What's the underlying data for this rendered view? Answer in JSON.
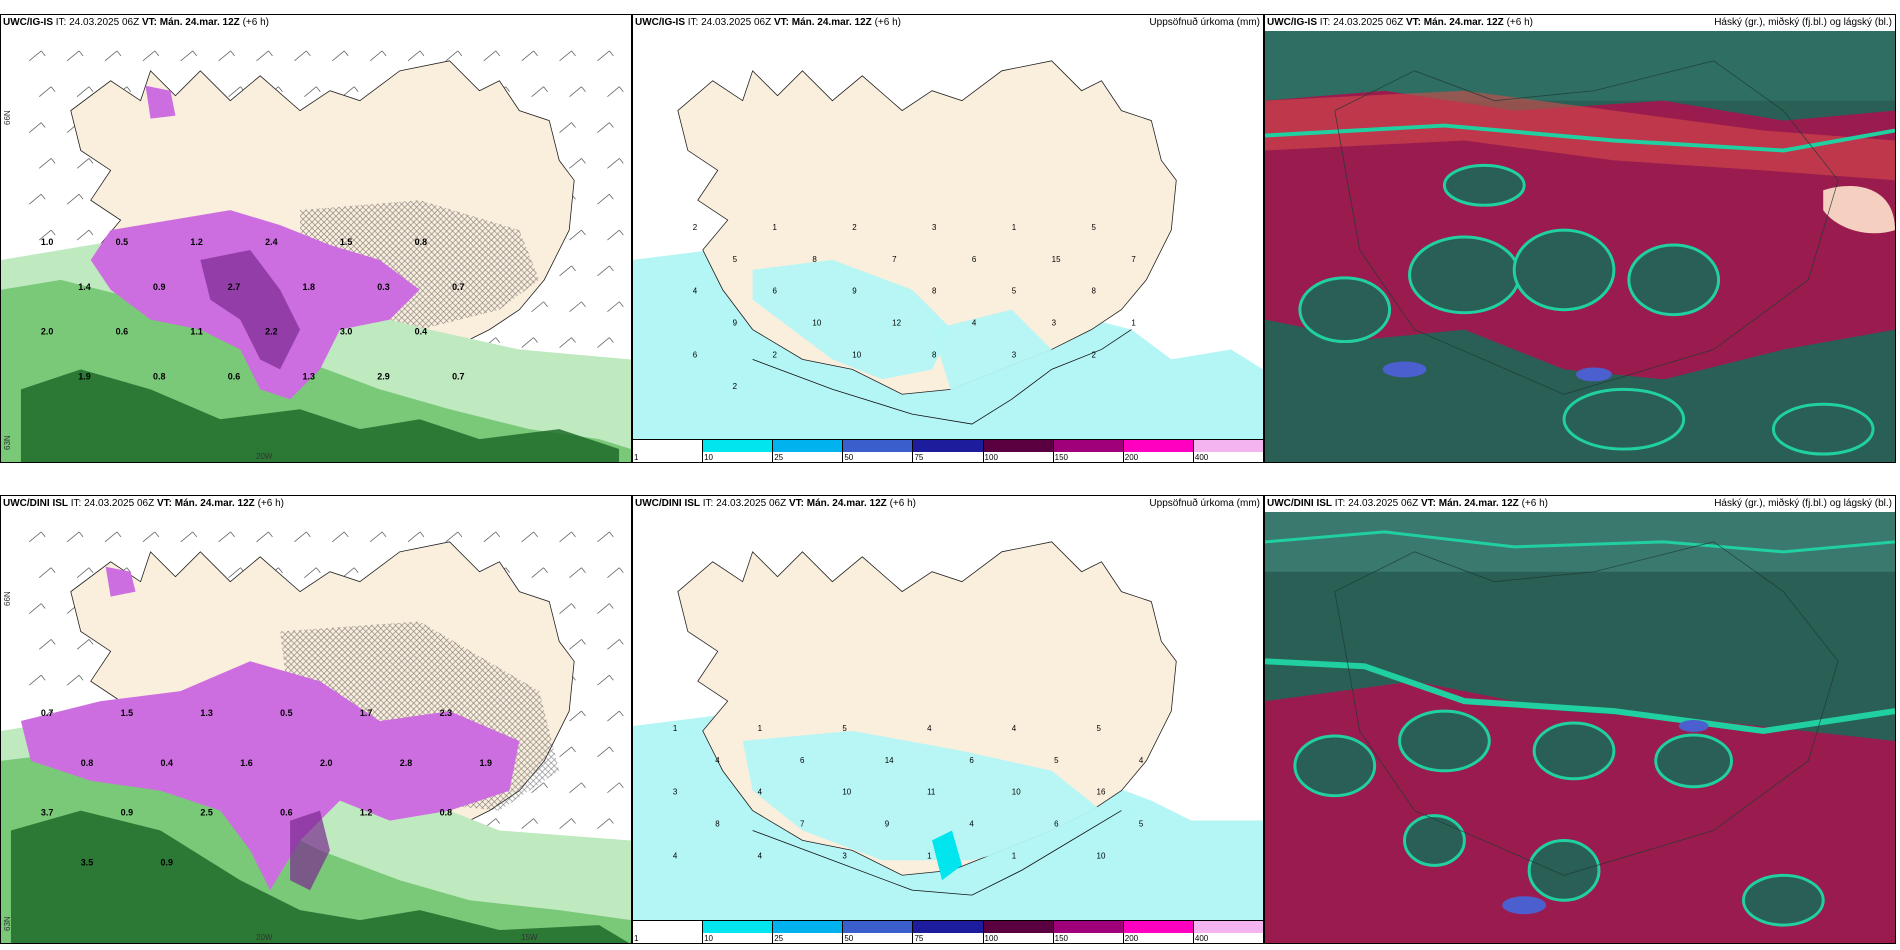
{
  "rows": [
    {
      "id": "igis",
      "model": "UWC/IG-IS",
      "panels": {
        "left": {
          "it": "IT: 24.03.2025 06Z",
          "vt_label": "VT:",
          "vt": "Mán. 24.mar. 12Z",
          "lead": "(+6 h)",
          "right_title": ""
        },
        "middle": {
          "it": "IT: 24.03.2025 06Z",
          "vt_label": "VT:",
          "vt": "Mán. 24.mar. 12Z",
          "lead": "(+6 h)",
          "right_title": "Uppsöfnuð úrkoma (mm)"
        },
        "right": {
          "it": "IT: 24.03.2025 06Z",
          "vt_label": "VT:",
          "vt": "Mán. 24.mar. 12Z",
          "lead": "(+6 h)",
          "right_title": "Háský (gr.), miðský (fj.bl.) og lágský (bl.)"
        }
      },
      "coord_labels": {
        "lat_top": "66N",
        "lat_bottom": "63N",
        "lon": "20W",
        "lon2": ""
      }
    },
    {
      "id": "dini",
      "model": "UWC/DINI ISL",
      "panels": {
        "left": {
          "it": "IT: 24.03.2025 06Z",
          "vt_label": "VT:",
          "vt": "Mán. 24.mar. 12Z",
          "lead": "(+6 h)",
          "right_title": ""
        },
        "middle": {
          "it": "IT: 24.03.2025 06Z",
          "vt_label": "VT:",
          "vt": "Mán. 24.mar. 12Z",
          "lead": "(+6 h)",
          "right_title": "Uppsöfnuð úrkoma (mm)"
        },
        "right": {
          "it": "IT: 24.03.2025 06Z",
          "vt_label": "VT:",
          "vt": "Mán. 24.mar. 12Z",
          "lead": "(+6 h)",
          "right_title": "Háský (gr.), miðský (fj.bl.) og lágský (bl.)"
        }
      },
      "coord_labels": {
        "lat_top": "66N",
        "lat_bottom": "63N",
        "lon": "20W",
        "lon2": "15W"
      }
    }
  ],
  "colorbar": {
    "segments": [
      {
        "label": "1",
        "color": "#ffffff"
      },
      {
        "label": "10",
        "color": "#00e5ee"
      },
      {
        "label": "25",
        "color": "#00b2ee"
      },
      {
        "label": "50",
        "color": "#3a5fcd"
      },
      {
        "label": "75",
        "color": "#1c1c9c"
      },
      {
        "label": "100",
        "color": "#5a0040"
      },
      {
        "label": "150",
        "color": "#a0007a"
      },
      {
        "label": "200",
        "color": "#ff00c0"
      },
      {
        "label": "400",
        "color": "#f4b4f0"
      }
    ]
  },
  "colors": {
    "land": "#faeedd",
    "precip_light": "#b4f5f5",
    "precip_left_green": "#48a048",
    "precip_left_dark": "#0a5a14",
    "precip_left_magenta": "#d070e0",
    "cloud_base": "#1f5e52",
    "cloud_high": "#9a1c4e",
    "cloud_low": "#20d0a0"
  },
  "left_values": {
    "igis": [
      "1.0",
      "0.5",
      "1.2",
      "2.4",
      "1.5",
      "0.8",
      "1.4",
      "0.9",
      "2.7",
      "1.8",
      "0.3",
      "0.7",
      "2.0",
      "0.6",
      "1.1",
      "2.2",
      "3.0",
      "0.4",
      "1.9",
      "0.8",
      "0.6",
      "1.3",
      "2.9",
      "0.7"
    ],
    "dini": [
      "0.7",
      "1.5",
      "1.3",
      "0.5",
      "1.7",
      "2.3",
      "0.8",
      "0.4",
      "1.6",
      "2.0",
      "2.8",
      "1.9",
      "3.7",
      "0.9",
      "2.5",
      "0.6",
      "1.2",
      "0.8",
      "3.5",
      "0.9"
    ]
  },
  "mid_values": {
    "igis": [
      "2",
      "1",
      "2",
      "3",
      "1",
      "5",
      "5",
      "8",
      "7",
      "6",
      "15",
      "7",
      "4",
      "6",
      "9",
      "8",
      "5",
      "8",
      "9",
      "10",
      "12",
      "4",
      "3",
      "1",
      "6",
      "2",
      "10",
      "8",
      "3",
      "2",
      "2"
    ],
    "dini": [
      "1",
      "1",
      "5",
      "4",
      "4",
      "5",
      "4",
      "6",
      "14",
      "6",
      "5",
      "4",
      "3",
      "4",
      "10",
      "11",
      "10",
      "16",
      "8",
      "7",
      "9",
      "4",
      "6",
      "5",
      "4",
      "4",
      "3",
      "1",
      "1",
      "10"
    ]
  }
}
